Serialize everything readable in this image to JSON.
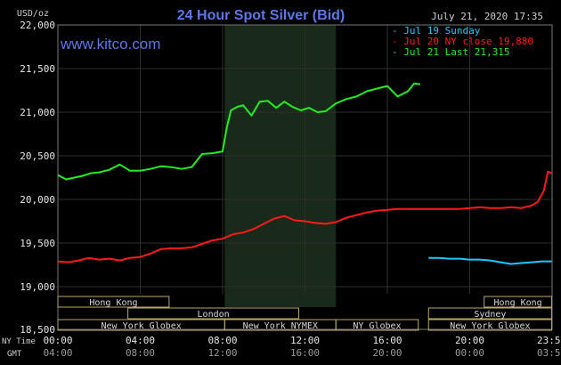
{
  "chart_data": {
    "type": "line",
    "title": "24 Hour Spot Silver (Bid)",
    "watermark": "www.kitco.com",
    "timestamp": "July 21, 2020 17:35",
    "ylabel": "USD/oz",
    "ylim": [
      18.5,
      22.0
    ],
    "yticks": [
      "22,000",
      "21,500",
      "21,000",
      "20,500",
      "20,000",
      "19,500",
      "19,000",
      "18,500"
    ],
    "ytick_values": [
      22.0,
      21.5,
      21.0,
      20.5,
      20.0,
      19.5,
      19.0,
      18.5
    ],
    "xlim": [
      0,
      24
    ],
    "xlabel_primary": "NY Time",
    "xlabel_secondary": "GMT",
    "xticks": [
      {
        "hour": 0,
        "label": "00:00",
        "gmt": "04:00"
      },
      {
        "hour": 4,
        "label": "04:00",
        "gmt": "08:00"
      },
      {
        "hour": 8,
        "label": "08:00",
        "gmt": "12:00"
      },
      {
        "hour": 12,
        "label": "12:00",
        "gmt": "16:00"
      },
      {
        "hour": 16,
        "label": "16:00",
        "gmt": "20:00"
      },
      {
        "hour": 20,
        "label": "20:00",
        "gmt": "00:00"
      },
      {
        "hour": 23.98,
        "label": "23:59",
        "gmt": "03:59"
      }
    ],
    "highlight_range": [
      8.1,
      13.5
    ],
    "grid": true,
    "legend_position": "top-right",
    "sessions": [
      {
        "name": "Hong Kong",
        "start": 0,
        "end": 5.4,
        "row": 0
      },
      {
        "name": "Hong Kong",
        "start": 20.7,
        "end": 23.98,
        "row": 0
      },
      {
        "name": "London",
        "start": 3.4,
        "end": 11.7,
        "row": 1
      },
      {
        "name": "Sydney",
        "start": 18.0,
        "end": 23.98,
        "row": 1
      },
      {
        "name": "New York Globex",
        "start": 0,
        "end": 8.1,
        "row": 2
      },
      {
        "name": "New York NYMEX",
        "start": 8.1,
        "end": 13.5,
        "row": 2
      },
      {
        "name": "NY Globex",
        "start": 13.5,
        "end": 17.5,
        "row": 2
      },
      {
        "name": "New York Globex",
        "start": 18.0,
        "end": 23.98,
        "row": 2
      }
    ],
    "series": [
      {
        "name": "Jul 19 Sunday",
        "color": "#1fc8ff",
        "x": [
          18.0,
          18.5,
          19.0,
          19.5,
          20.0,
          20.5,
          21.0,
          21.5,
          22.0,
          22.5,
          23.0,
          23.5,
          23.98
        ],
        "y": [
          19.33,
          19.33,
          19.32,
          19.32,
          19.31,
          19.31,
          19.3,
          19.28,
          19.26,
          19.27,
          19.28,
          19.29,
          19.29
        ]
      },
      {
        "name": "Jul 20 NY close 19,880",
        "color": "#ff1a1a",
        "x": [
          0,
          0.5,
          1.0,
          1.5,
          2.0,
          2.5,
          3.0,
          3.5,
          4.0,
          4.5,
          5.0,
          5.5,
          6.0,
          6.5,
          7.0,
          7.5,
          8.0,
          8.5,
          9.0,
          9.5,
          10.0,
          10.5,
          11.0,
          11.5,
          12.0,
          12.5,
          13.0,
          13.5,
          14.0,
          14.5,
          15.0,
          15.5,
          16.0,
          16.5,
          17.0,
          17.5,
          18.0,
          18.5,
          19.0,
          19.5,
          20.0,
          20.5,
          21.0,
          21.5,
          22.0,
          22.5,
          23.0,
          23.3,
          23.6,
          23.8,
          23.98
        ],
        "y": [
          19.29,
          19.28,
          19.3,
          19.33,
          19.31,
          19.32,
          19.3,
          19.33,
          19.34,
          19.38,
          19.43,
          19.44,
          19.44,
          19.45,
          19.49,
          19.53,
          19.55,
          19.6,
          19.62,
          19.66,
          19.72,
          19.78,
          19.81,
          19.76,
          19.75,
          19.73,
          19.72,
          19.74,
          19.79,
          19.82,
          19.85,
          19.87,
          19.88,
          19.89,
          19.89,
          19.89,
          19.89,
          19.89,
          19.89,
          19.89,
          19.9,
          19.91,
          19.9,
          19.9,
          19.91,
          19.9,
          19.93,
          19.97,
          20.1,
          20.32,
          20.3
        ]
      },
      {
        "name": "Jul 21 Last 21,315",
        "color": "#22ee22",
        "x": [
          0,
          0.4,
          0.8,
          1.2,
          1.6,
          2.0,
          2.5,
          3.0,
          3.5,
          4.0,
          4.5,
          5.0,
          5.5,
          6.0,
          6.5,
          7.0,
          7.5,
          8.0,
          8.2,
          8.4,
          8.7,
          9.0,
          9.4,
          9.8,
          10.2,
          10.6,
          11.0,
          11.4,
          11.8,
          12.2,
          12.6,
          13.0,
          13.5,
          14.0,
          14.5,
          15.0,
          15.5,
          16.0,
          16.5,
          17.0,
          17.3,
          17.6
        ],
        "y": [
          20.28,
          20.23,
          20.25,
          20.27,
          20.3,
          20.31,
          20.34,
          20.4,
          20.33,
          20.33,
          20.35,
          20.38,
          20.37,
          20.35,
          20.37,
          20.52,
          20.53,
          20.55,
          20.82,
          21.02,
          21.06,
          21.08,
          20.96,
          21.12,
          21.13,
          21.05,
          21.12,
          21.06,
          21.02,
          21.05,
          21.0,
          21.01,
          21.1,
          21.15,
          21.18,
          21.24,
          21.27,
          21.3,
          21.18,
          21.24,
          21.33,
          21.32
        ]
      }
    ]
  }
}
